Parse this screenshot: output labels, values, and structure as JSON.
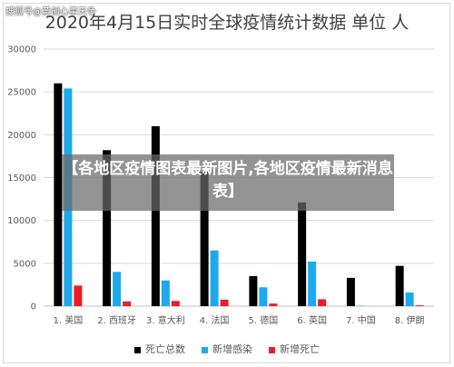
{
  "watermark": "搜狐号@黄创心事天争",
  "overlay_text": "【各地区疫情图表最新图片,各地区疫情最新消息表】",
  "chart_data": {
    "type": "bar",
    "title": "2020年4月15日实时全球疫情统计数据 单位 人",
    "xlabel": "",
    "ylabel": "",
    "categories": [
      "1. 美国",
      "2. 西班牙",
      "3. 意大利",
      "4. 法国",
      "5. 德国",
      "6. 英国",
      "7. 中国",
      "8. 伊朗"
    ],
    "ylim": [
      0,
      30000
    ],
    "yticks": [
      0,
      5000,
      10000,
      15000,
      20000,
      25000,
      30000
    ],
    "grid": true,
    "legend_position": "bottom",
    "series": [
      {
        "name": "死亡总数",
        "color": "#000000",
        "values": [
          26000,
          18200,
          21000,
          15700,
          3500,
          12100,
          3300,
          4700
        ]
      },
      {
        "name": "新增感染",
        "color": "#1ea9ec",
        "values": [
          25400,
          4000,
          3000,
          6500,
          2200,
          5200,
          46,
          1600
        ]
      },
      {
        "name": "新增死亡",
        "color": "#ee1c25",
        "values": [
          2400,
          550,
          600,
          750,
          300,
          800,
          0,
          100
        ]
      }
    ]
  }
}
